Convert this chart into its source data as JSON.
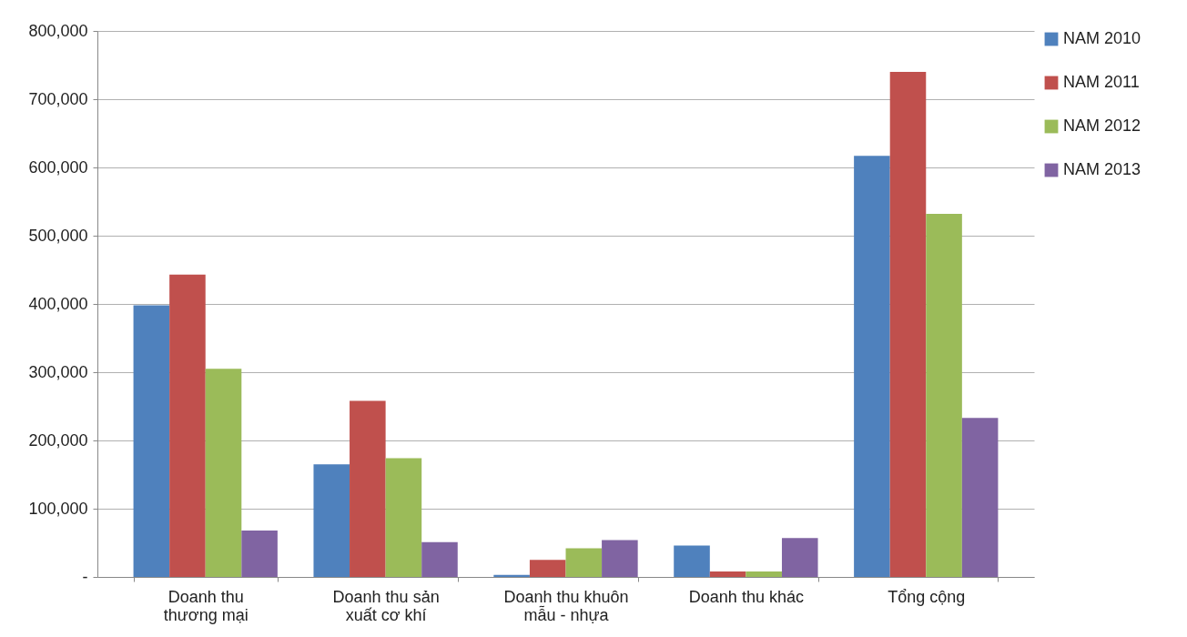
{
  "chart_data": {
    "type": "bar",
    "categories": [
      "Doanh thu thương mại",
      "Doanh thu sản xuất cơ khí",
      "Doanh thu khuôn mẫu - nhựa",
      "Doanh thu khác",
      "Tổng cộng"
    ],
    "series": [
      {
        "name": "NAM 2010",
        "color": "#4f81bd",
        "values": [
          398000,
          165000,
          3000,
          46000,
          617000
        ]
      },
      {
        "name": "NAM 2011",
        "color": "#c0504d",
        "values": [
          443000,
          258000,
          25000,
          8000,
          740000
        ]
      },
      {
        "name": "NAM 2012",
        "color": "#9bbb59",
        "values": [
          305000,
          174000,
          42000,
          8000,
          532000
        ]
      },
      {
        "name": "NAM 2013",
        "color": "#8064a2",
        "values": [
          68000,
          51000,
          54000,
          57000,
          233000
        ]
      }
    ],
    "ylim": [
      0,
      800000
    ],
    "yticks": [
      {
        "value": 0,
        "label": "-"
      },
      {
        "value": 100000,
        "label": "100,000"
      },
      {
        "value": 200000,
        "label": "200,000"
      },
      {
        "value": 300000,
        "label": "300,000"
      },
      {
        "value": 400000,
        "label": "400,000"
      },
      {
        "value": 500000,
        "label": "500,000"
      },
      {
        "value": 600000,
        "label": "600,000"
      },
      {
        "value": 700000,
        "label": "700,000"
      },
      {
        "value": 800000,
        "label": "800,000"
      }
    ],
    "grid": "y",
    "legend": "right"
  }
}
